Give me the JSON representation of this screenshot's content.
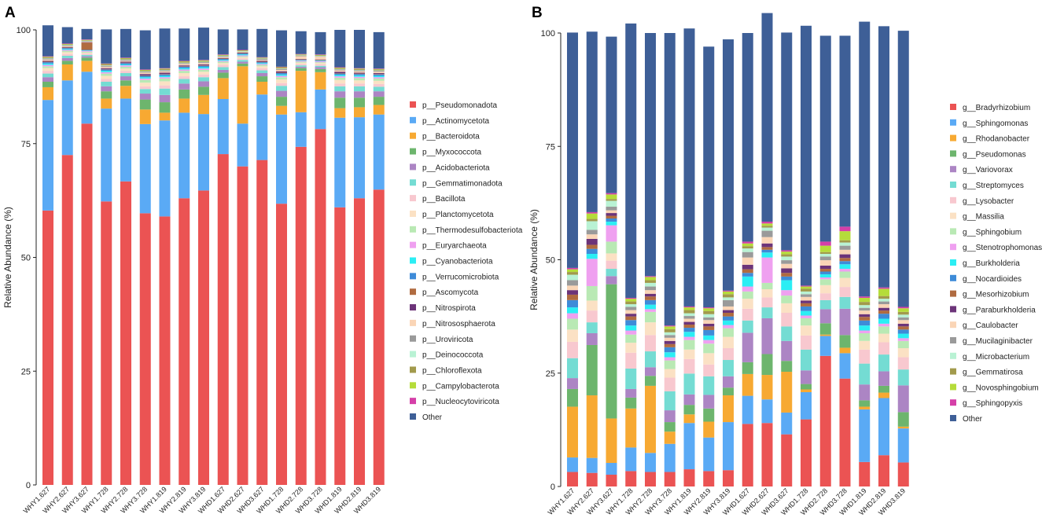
{
  "colors": [
    "#EB5353",
    "#5AAAF5",
    "#F7A932",
    "#6DB56D",
    "#AC85C4",
    "#74DCD3",
    "#F8C8CF",
    "#FBE1C4",
    "#B9E9B4",
    "#EFA0F0",
    "#2BEEF4",
    "#3E8BD8",
    "#B06B40",
    "#6C3479",
    "#FAD5B6",
    "#9A9A9A",
    "#B9F2D4",
    "#A29A4C",
    "#B5DC3A",
    "#D53FA8",
    "#3E5F97"
  ],
  "chart_data": [
    {
      "panel_label": "A",
      "type": "bar",
      "stacked": true,
      "title": "",
      "xlabel": "",
      "ylabel": "Relative Abundance (%)",
      "ylim": [
        0,
        100
      ],
      "yticks": [
        "0",
        "25",
        "50",
        "75",
        "100"
      ],
      "categories": [
        "WHY1.627",
        "WHY2.627",
        "WHY3.627",
        "WHY1.728",
        "WHY2.728",
        "WHY3.728",
        "WHY1.819",
        "WHY2.819",
        "WHY3.819",
        "WHD1.627",
        "WHD2.627",
        "WHD3.627",
        "WHD1.728",
        "WHD2.728",
        "WHD3.728",
        "WHD1.819",
        "WHD2.819",
        "WHD3.819"
      ],
      "legend_position": "right",
      "series": [
        {
          "name": "p__Pseudomonadota",
          "values": [
            60.3,
            72.5,
            79.4,
            62.3,
            66.7,
            59.7,
            59.0,
            63.0,
            64.7,
            72.7,
            70.0,
            71.4,
            61.8,
            74.3,
            78.2,
            61.0,
            63.0,
            64.9
          ]
        },
        {
          "name": "p__Actinomycetota",
          "values": [
            24.3,
            16.4,
            11.4,
            20.4,
            18.2,
            19.6,
            21.1,
            18.8,
            16.8,
            12.1,
            9.4,
            14.4,
            19.6,
            7.6,
            8.7,
            19.7,
            17.8,
            16.5
          ]
        },
        {
          "name": "p__Bacteroidota",
          "values": [
            2.8,
            3.5,
            2.4,
            2.2,
            2.8,
            3.2,
            1.7,
            3.1,
            4.2,
            4.6,
            12.6,
            2.8,
            1.9,
            9.1,
            3.8,
            2.1,
            2.2,
            2.1
          ]
        },
        {
          "name": "p__Myxococcota",
          "values": [
            1.2,
            0.8,
            0.7,
            1.6,
            1.2,
            2.2,
            2.3,
            2.0,
            1.8,
            1.2,
            0.6,
            1.2,
            2.0,
            0.6,
            0.7,
            2.3,
            2.1,
            1.8
          ]
        },
        {
          "name": "p__Acidobacteriota",
          "values": [
            1.0,
            0.6,
            0.3,
            1.1,
            0.9,
            1.3,
            1.6,
            1.3,
            1.2,
            0.6,
            0.4,
            0.7,
            1.3,
            0.3,
            0.4,
            1.4,
            1.4,
            1.2
          ]
        },
        {
          "name": "p__Gemmatimonadota",
          "values": [
            0.8,
            0.5,
            0.3,
            1.0,
            0.7,
            1.0,
            1.4,
            1.0,
            0.9,
            0.6,
            0.4,
            0.6,
            1.1,
            0.3,
            0.3,
            1.1,
            1.1,
            1.0
          ]
        },
        {
          "name": "p__Bacillota",
          "values": [
            0.6,
            0.4,
            0.3,
            0.6,
            0.5,
            0.6,
            0.7,
            0.6,
            0.6,
            0.5,
            0.3,
            0.5,
            0.6,
            0.3,
            0.3,
            0.6,
            0.6,
            0.6
          ]
        },
        {
          "name": "p__Planctomycetota",
          "values": [
            0.6,
            0.4,
            0.2,
            0.7,
            0.5,
            0.8,
            0.9,
            0.7,
            0.6,
            0.4,
            0.3,
            0.4,
            0.8,
            0.3,
            0.3,
            0.8,
            0.7,
            0.7
          ]
        },
        {
          "name": "p__Thermodesulfobacteriota",
          "values": [
            0.4,
            0.3,
            0.2,
            0.5,
            0.4,
            0.6,
            0.6,
            0.5,
            0.4,
            0.3,
            0.2,
            0.3,
            0.5,
            0.2,
            0.2,
            0.5,
            0.5,
            0.5
          ]
        },
        {
          "name": "p__Euryarchaeota",
          "values": [
            0.3,
            0.2,
            0.2,
            0.3,
            0.3,
            0.3,
            0.3,
            0.3,
            0.3,
            0.2,
            0.2,
            0.2,
            0.3,
            0.2,
            0.2,
            0.3,
            0.3,
            0.3
          ]
        },
        {
          "name": "p__Cyanobacteriota",
          "values": [
            0.3,
            0.2,
            0.1,
            0.3,
            0.2,
            0.3,
            0.3,
            0.3,
            0.3,
            0.2,
            0.2,
            0.2,
            0.3,
            0.1,
            0.1,
            0.3,
            0.3,
            0.3
          ]
        },
        {
          "name": "p__Verrucomicrobiota",
          "values": [
            0.3,
            0.2,
            0.1,
            0.3,
            0.3,
            0.3,
            0.3,
            0.3,
            0.3,
            0.2,
            0.2,
            0.2,
            0.3,
            0.1,
            0.1,
            0.3,
            0.3,
            0.3
          ]
        },
        {
          "name": "p__Ascomycota",
          "values": [
            0.1,
            0.1,
            1.6,
            0.1,
            0.1,
            0.1,
            0.1,
            0.1,
            0.1,
            0.1,
            0.1,
            0.1,
            0.1,
            0.1,
            0.1,
            0.1,
            0.1,
            0.1
          ]
        },
        {
          "name": "p__Nitrospirota",
          "values": [
            0.2,
            0.1,
            0.1,
            0.2,
            0.2,
            0.3,
            0.3,
            0.2,
            0.2,
            0.1,
            0.1,
            0.2,
            0.3,
            0.1,
            0.1,
            0.3,
            0.2,
            0.2
          ]
        },
        {
          "name": "p__Nitrososphaerota",
          "values": [
            0.3,
            0.2,
            0.1,
            0.3,
            0.2,
            0.3,
            0.3,
            0.3,
            0.3,
            0.2,
            0.1,
            0.2,
            0.3,
            0.6,
            0.6,
            0.3,
            0.3,
            0.3
          ]
        },
        {
          "name": "p__Uroviricota",
          "values": [
            0.2,
            0.2,
            0.1,
            0.2,
            0.2,
            0.2,
            0.2,
            0.2,
            0.2,
            0.2,
            0.1,
            0.2,
            0.2,
            0.1,
            0.1,
            0.2,
            0.2,
            0.2
          ]
        },
        {
          "name": "p__Deinococcota",
          "values": [
            0.1,
            0.1,
            0.1,
            0.1,
            0.1,
            0.1,
            0.1,
            0.1,
            0.1,
            0.1,
            0.1,
            0.1,
            0.1,
            0.1,
            0.1,
            0.1,
            0.1,
            0.1
          ]
        },
        {
          "name": "p__Chloroflexota",
          "values": [
            0.2,
            0.1,
            0.1,
            0.2,
            0.2,
            0.2,
            0.2,
            0.2,
            0.2,
            0.1,
            0.1,
            0.1,
            0.2,
            0.1,
            0.1,
            0.2,
            0.2,
            0.2
          ]
        },
        {
          "name": "p__Campylobacterota",
          "values": [
            0.1,
            0.1,
            0.1,
            0.1,
            0.1,
            0.1,
            0.1,
            0.1,
            0.1,
            0.1,
            0.1,
            0.1,
            0.1,
            0.1,
            0.1,
            0.1,
            0.1,
            0.1
          ]
        },
        {
          "name": "p__Nucleocytoviricota",
          "values": [
            0.1,
            0.1,
            0.1,
            0.1,
            0.1,
            0.1,
            0.1,
            0.1,
            0.1,
            0.1,
            0.1,
            0.1,
            0.1,
            0.1,
            0.1,
            0.1,
            0.1,
            0.1
          ]
        },
        {
          "name": "Other",
          "values": [
            6.8,
            3.6,
            2.3,
            7.5,
            6.3,
            8.6,
            8.7,
            7.1,
            7.1,
            5.5,
            4.5,
            6.2,
            8.0,
            5.0,
            4.9,
            8.2,
            8.4,
            8.0
          ]
        }
      ]
    },
    {
      "panel_label": "B",
      "type": "bar",
      "stacked": true,
      "title": "",
      "xlabel": "",
      "ylabel": "Relative Abundance (%)",
      "ylim": [
        0,
        100
      ],
      "yticks": [
        "0",
        "25",
        "50",
        "75",
        "100"
      ],
      "categories": [
        "WHY1.627",
        "WHY2.627",
        "WHY3.627",
        "WHY1.728",
        "WHY2.728",
        "WHY3.728",
        "WHY1.819",
        "WHY2.819",
        "WHY3.819",
        "WHD1.627",
        "WHD2.627",
        "WHD3.627",
        "WHD1.728",
        "WHD2.728",
        "WHD3.728",
        "WHD1.819",
        "WHD2.819",
        "WHD3.819"
      ],
      "legend_position": "right",
      "series": [
        {
          "name": "g__Bradyrhizobium",
          "values": [
            3.2,
            3.0,
            2.6,
            3.4,
            3.2,
            3.2,
            3.8,
            3.4,
            3.6,
            13.8,
            14.0,
            11.5,
            14.8,
            28.8,
            23.8,
            5.4,
            6.9,
            5.3
          ]
        },
        {
          "name": "g__Sphingomonas",
          "values": [
            3.2,
            3.3,
            2.6,
            5.2,
            4.2,
            6.2,
            10.2,
            7.4,
            10.6,
            6.2,
            5.2,
            4.8,
            6.0,
            4.4,
            5.6,
            11.6,
            12.6,
            7.5
          ]
        },
        {
          "name": "g__Rhodanobacter",
          "values": [
            11.2,
            13.8,
            9.8,
            8.6,
            14.8,
            2.7,
            1.9,
            3.5,
            5.9,
            4.8,
            5.4,
            9.0,
            0.6,
            0.3,
            1.2,
            0.6,
            1.2,
            0.4
          ]
        },
        {
          "name": "g__Pseudomonas",
          "values": [
            3.9,
            11.1,
            29.6,
            2.4,
            2.2,
            2.1,
            2.1,
            2.9,
            1.7,
            2.6,
            4.6,
            2.4,
            1.2,
            2.5,
            2.8,
            1.4,
            1.5,
            3.2
          ]
        },
        {
          "name": "g__Variovorax",
          "values": [
            2.4,
            2.6,
            1.8,
            1.9,
            1.9,
            2.6,
            2.3,
            3.0,
            2.5,
            6.5,
            7.9,
            4.4,
            3.0,
            3.1,
            5.8,
            3.5,
            3.2,
            5.9
          ]
        },
        {
          "name": "g__Streptomyces",
          "values": [
            4.4,
            2.4,
            1.6,
            4.5,
            3.5,
            4.2,
            4.6,
            4.1,
            3.6,
            2.7,
            2.4,
            3.2,
            4.6,
            2.0,
            2.6,
            4.6,
            3.7,
            3.5
          ]
        },
        {
          "name": "g__Lysobacter",
          "values": [
            3.6,
            2.6,
            1.8,
            3.5,
            3.6,
            3.0,
            3.2,
            2.6,
            2.6,
            2.6,
            2.2,
            3.0,
            3.1,
            1.5,
            2.2,
            3.1,
            2.7,
            2.7
          ]
        },
        {
          "name": "g__Massilia",
          "values": [
            2.7,
            2.2,
            1.6,
            2.2,
            2.8,
            1.9,
            2.1,
            2.5,
            2.5,
            2.2,
            1.8,
            2.1,
            2.2,
            1.8,
            2.0,
            1.9,
            1.9,
            2.0
          ]
        },
        {
          "name": "g__Sphingobium",
          "values": [
            2.4,
            3.2,
            2.6,
            1.8,
            2.3,
            1.9,
            2.1,
            2.1,
            1.9,
            1.6,
            1.4,
            1.7,
            1.6,
            1.3,
            1.4,
            1.7,
            1.6,
            1.6
          ]
        },
        {
          "name": "g__Stenotrophomonas",
          "values": [
            1.2,
            6.0,
            3.6,
            0.9,
            0.6,
            0.7,
            0.7,
            0.8,
            0.7,
            1.1,
            5.6,
            1.2,
            0.6,
            0.4,
            0.6,
            0.6,
            0.6,
            0.6
          ]
        },
        {
          "name": "g__Burkholderia",
          "values": [
            1.3,
            1.1,
            0.8,
            1.1,
            1.0,
            1.1,
            1.1,
            1.0,
            1.0,
            2.2,
            1.1,
            2.2,
            1.0,
            0.7,
            1.0,
            1.1,
            1.1,
            1.0
          ]
        },
        {
          "name": "g__Nocardioides",
          "values": [
            1.6,
            1.1,
            0.7,
            1.2,
            1.0,
            1.1,
            0.9,
            1.2,
            0.9,
            0.8,
            0.6,
            0.8,
            1.0,
            0.6,
            0.7,
            1.1,
            1.1,
            0.9
          ]
        },
        {
          "name": "g__Mesorhizobium",
          "values": [
            1.2,
            0.9,
            0.6,
            0.8,
            0.8,
            0.7,
            0.7,
            0.8,
            0.8,
            0.8,
            0.6,
            0.8,
            0.7,
            0.6,
            0.7,
            0.8,
            0.7,
            0.7
          ]
        },
        {
          "name": "g__Paraburkholderia",
          "values": [
            1.0,
            1.3,
            0.6,
            0.6,
            0.6,
            0.7,
            0.6,
            0.6,
            0.6,
            1.0,
            0.8,
            1.0,
            0.6,
            0.7,
            0.8,
            0.6,
            0.6,
            0.6
          ]
        },
        {
          "name": "g__Caulobacter",
          "values": [
            1.0,
            1.0,
            0.6,
            0.8,
            0.8,
            0.7,
            0.7,
            0.8,
            0.8,
            1.6,
            1.4,
            1.0,
            0.8,
            1.2,
            1.0,
            0.8,
            0.8,
            0.8
          ]
        },
        {
          "name": "g__Mucilaginibacter",
          "values": [
            1.2,
            1.0,
            0.8,
            0.7,
            0.8,
            0.6,
            0.6,
            0.6,
            1.4,
            1.2,
            1.4,
            0.8,
            0.6,
            0.8,
            0.9,
            0.6,
            0.6,
            0.6
          ]
        },
        {
          "name": "g__Microbacterium",
          "values": [
            1.2,
            1.9,
            1.3,
            0.6,
            0.8,
            0.6,
            0.6,
            0.7,
            0.6,
            0.8,
            0.7,
            0.8,
            0.6,
            0.6,
            0.7,
            0.6,
            0.6,
            0.6
          ]
        },
        {
          "name": "g__Gemmatirosa",
          "values": [
            0.6,
            0.5,
            0.4,
            0.6,
            0.6,
            0.7,
            0.7,
            0.7,
            0.7,
            0.5,
            0.4,
            0.5,
            0.6,
            0.4,
            0.5,
            0.7,
            0.6,
            0.6
          ]
        },
        {
          "name": "g__Novosphingobium",
          "values": [
            0.6,
            1.2,
            1.0,
            0.6,
            0.7,
            0.6,
            0.6,
            0.6,
            0.6,
            0.6,
            0.5,
            0.6,
            0.5,
            1.4,
            2.0,
            0.9,
            1.6,
            0.8
          ]
        },
        {
          "name": "g__Sphingopyxis",
          "values": [
            0.3,
            0.3,
            0.3,
            0.2,
            0.2,
            0.2,
            0.2,
            0.2,
            0.2,
            0.4,
            0.4,
            0.3,
            0.2,
            0.9,
            1.0,
            0.3,
            0.3,
            0.3
          ]
        },
        {
          "name": "Other",
          "values": [
            51.9,
            39.8,
            34.5,
            60.5,
            53.6,
            64.5,
            61.3,
            57.5,
            55.4,
            46.0,
            46.0,
            48.0,
            57.3,
            45.4,
            42.1,
            60.6,
            57.6,
            60.9
          ]
        }
      ]
    }
  ]
}
